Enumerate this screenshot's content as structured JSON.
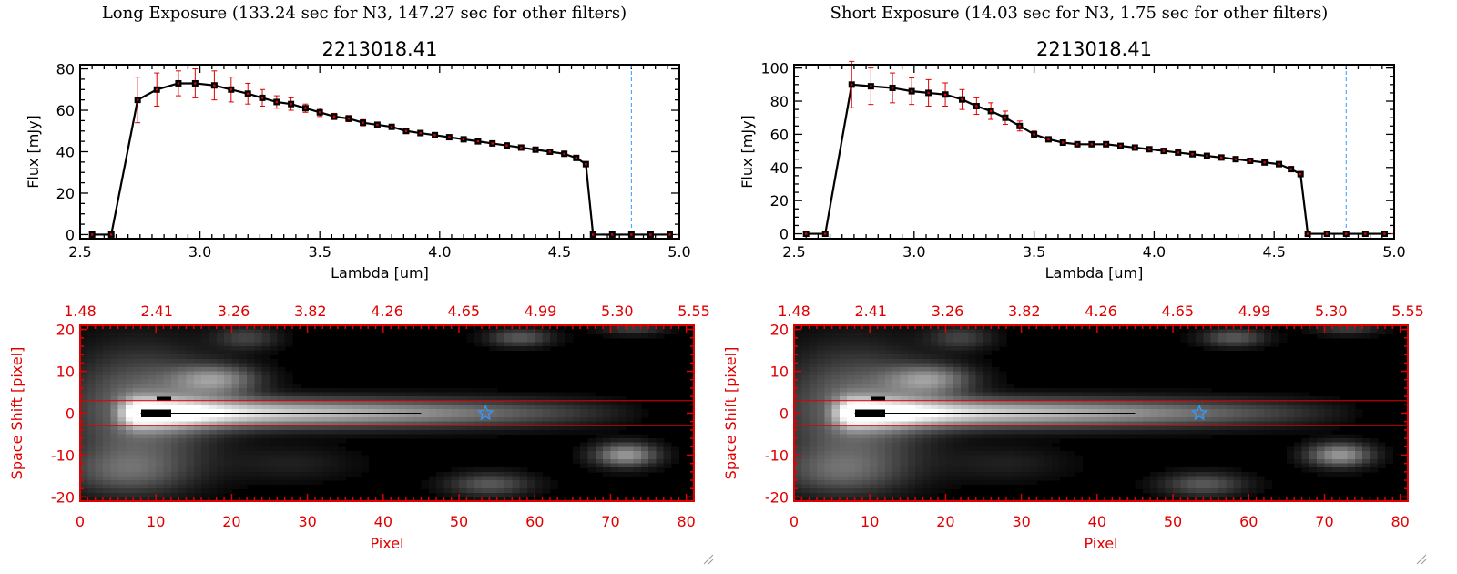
{
  "panels": [
    {
      "title": "Long Exposure (133.24 sec for N3, 147.27 sec for other filters)"
    },
    {
      "title": "Short Exposure (14.03 sec for N3, 1.75 sec for other filters)"
    }
  ],
  "colors": {
    "spectrum": "#000000",
    "errorbar": "#e00000",
    "cutoff_line": "#3399ff",
    "image_axis": "#e00000",
    "aperture": "#e00000",
    "marker": "#3399ff"
  },
  "chart_data": [
    {
      "type": "line",
      "title": "2213018.41",
      "xlabel": "Lambda [um]",
      "ylabel": "Flux [mJy]",
      "xlim": [
        2.5,
        5.0
      ],
      "ylim": [
        -2,
        82
      ],
      "xticks": [
        "2.5",
        "3.0",
        "3.5",
        "4.0",
        "4.5",
        "5.0"
      ],
      "yticks": [
        "0",
        "20",
        "40",
        "60",
        "80"
      ],
      "ytick_values": [
        0,
        20,
        40,
        60,
        80
      ],
      "cutoff_x": 4.8,
      "series": [
        {
          "x": [
            2.55,
            2.63,
            2.74,
            2.82,
            2.91,
            2.98,
            3.06,
            3.13,
            3.2,
            3.26,
            3.32,
            3.38,
            3.44,
            3.5,
            3.56,
            3.62,
            3.68,
            3.74,
            3.8,
            3.86,
            3.92,
            3.98,
            4.04,
            4.1,
            4.16,
            4.22,
            4.28,
            4.34,
            4.4,
            4.46,
            4.52,
            4.57,
            4.61,
            4.64,
            4.72,
            4.8,
            4.88,
            4.96
          ],
          "y": [
            0,
            0,
            65,
            70,
            73,
            73,
            72,
            70,
            68,
            66,
            64,
            63,
            61,
            59,
            57,
            56,
            54,
            53,
            52,
            50,
            49,
            48,
            47,
            46,
            45,
            44,
            43,
            42,
            41,
            40,
            39,
            37,
            34,
            0,
            0,
            0,
            0,
            0
          ],
          "err": [
            0,
            0,
            11,
            8,
            6,
            7,
            7,
            6,
            5,
            4,
            3,
            3,
            2,
            2,
            1.5,
            1.5,
            1.5,
            1,
            1,
            1,
            1,
            1,
            1,
            1,
            1,
            1,
            1,
            1,
            1,
            1,
            1,
            1,
            1,
            0,
            0,
            0,
            0,
            0
          ]
        }
      ]
    },
    {
      "type": "line",
      "title": "2213018.41",
      "xlabel": "Lambda [um]",
      "ylabel": "Flux [mJy]",
      "xlim": [
        2.5,
        5.0
      ],
      "ylim": [
        -3,
        102
      ],
      "xticks": [
        "2.5",
        "3.0",
        "3.5",
        "4.0",
        "4.5",
        "5.0"
      ],
      "yticks": [
        "0",
        "20",
        "40",
        "60",
        "80",
        "100"
      ],
      "ytick_values": [
        0,
        20,
        40,
        60,
        80,
        100
      ],
      "cutoff_x": 4.8,
      "series": [
        {
          "x": [
            2.55,
            2.63,
            2.74,
            2.82,
            2.91,
            2.99,
            3.06,
            3.13,
            3.2,
            3.26,
            3.32,
            3.38,
            3.44,
            3.5,
            3.56,
            3.62,
            3.68,
            3.74,
            3.8,
            3.86,
            3.92,
            3.98,
            4.04,
            4.1,
            4.16,
            4.22,
            4.28,
            4.34,
            4.4,
            4.46,
            4.52,
            4.57,
            4.61,
            4.64,
            4.72,
            4.8,
            4.88,
            4.96
          ],
          "y": [
            0,
            0,
            90,
            89,
            88,
            86,
            85,
            84,
            81,
            77,
            74,
            70,
            65,
            60,
            57,
            55,
            54,
            54,
            54,
            53,
            52,
            51,
            50,
            49,
            48,
            47,
            46,
            45,
            44,
            43,
            42,
            39,
            36,
            0,
            0,
            0,
            0,
            0
          ],
          "err": [
            0,
            0,
            14,
            11,
            9,
            8,
            8,
            7,
            6,
            5,
            5,
            4,
            3,
            2,
            1.5,
            1.5,
            1.5,
            1,
            1,
            1,
            1,
            1,
            1,
            1,
            1,
            1,
            1,
            1,
            1,
            1,
            1,
            1,
            1,
            0,
            0,
            0,
            0,
            0
          ]
        }
      ]
    },
    {
      "type": "heatmap",
      "xlabel": "Pixel",
      "ylabel": "Space Shift [pixel]",
      "xlim": [
        0,
        81
      ],
      "ylim": [
        -21,
        21
      ],
      "xticks": [
        "0",
        "10",
        "20",
        "30",
        "40",
        "50",
        "60",
        "70",
        "80"
      ],
      "xtick_values": [
        0,
        10,
        20,
        30,
        40,
        50,
        60,
        70,
        80
      ],
      "yticks": [
        "-20",
        "-10",
        "0",
        "10",
        "20"
      ],
      "ytick_values": [
        -20,
        -10,
        0,
        10,
        20
      ],
      "top_axis_labels": [
        "1.48",
        "2.41",
        "3.26",
        "3.82",
        "4.26",
        "4.65",
        "4.99",
        "5.30",
        "5.55"
      ],
      "aperture": [
        -3,
        3
      ],
      "star_x": 53.5,
      "blobs": [
        {
          "x": 8,
          "y": 1,
          "sx": 7,
          "sy": 10,
          "amp": 0.45
        },
        {
          "x": 18,
          "y": 8,
          "sx": 4,
          "sy": 2.5,
          "amp": 0.5
        },
        {
          "x": 22,
          "y": 18,
          "sx": 3,
          "sy": 2,
          "amp": 0.25
        },
        {
          "x": 58,
          "y": 18,
          "sx": 3,
          "sy": 1.5,
          "amp": 0.35
        },
        {
          "x": 73,
          "y": 20,
          "sx": 3,
          "sy": 1,
          "amp": 0.25
        },
        {
          "x": 54,
          "y": -17,
          "sx": 4,
          "sy": 2,
          "amp": 0.35
        },
        {
          "x": 72,
          "y": -10,
          "sx": 3,
          "sy": 2,
          "amp": 0.6
        },
        {
          "x": 6,
          "y": -14,
          "sx": 6,
          "sy": 4,
          "amp": 0.3
        },
        {
          "x": 28,
          "y": -12,
          "sx": 6,
          "sy": 3,
          "amp": 0.12
        }
      ],
      "trace": {
        "start": 8,
        "end": 76,
        "peak": 0.92,
        "width": 2.4
      },
      "dark_patches": [
        {
          "x": [
            8,
            12
          ],
          "y": [
            -1,
            1
          ]
        },
        {
          "x": [
            10,
            12
          ],
          "y": [
            3,
            4
          ]
        }
      ]
    },
    {
      "type": "heatmap",
      "xlabel": "Pixel",
      "ylabel": "Space Shift [pixel]",
      "xlim": [
        0,
        81
      ],
      "ylim": [
        -21,
        21
      ],
      "xticks": [
        "0",
        "10",
        "20",
        "30",
        "40",
        "50",
        "60",
        "70",
        "80"
      ],
      "xtick_values": [
        0,
        10,
        20,
        30,
        40,
        50,
        60,
        70,
        80
      ],
      "yticks": [
        "-20",
        "-10",
        "0",
        "10",
        "20"
      ],
      "ytick_values": [
        -20,
        -10,
        0,
        10,
        20
      ],
      "top_axis_labels": [
        "1.48",
        "2.41",
        "3.26",
        "3.82",
        "4.26",
        "4.65",
        "4.99",
        "5.30",
        "5.55"
      ],
      "aperture": [
        -3,
        3
      ],
      "star_x": 53.5,
      "blobs": [
        {
          "x": 8,
          "y": 1,
          "sx": 7,
          "sy": 10,
          "amp": 0.45
        },
        {
          "x": 18,
          "y": 8,
          "sx": 4,
          "sy": 2.5,
          "amp": 0.5
        },
        {
          "x": 22,
          "y": 18,
          "sx": 3,
          "sy": 2,
          "amp": 0.25
        },
        {
          "x": 58,
          "y": 18,
          "sx": 3,
          "sy": 1.5,
          "amp": 0.35
        },
        {
          "x": 73,
          "y": 20,
          "sx": 3,
          "sy": 1,
          "amp": 0.25
        },
        {
          "x": 54,
          "y": -17,
          "sx": 4,
          "sy": 2,
          "amp": 0.35
        },
        {
          "x": 72,
          "y": -10,
          "sx": 3,
          "sy": 2,
          "amp": 0.6
        },
        {
          "x": 6,
          "y": -14,
          "sx": 6,
          "sy": 4,
          "amp": 0.3
        },
        {
          "x": 28,
          "y": -12,
          "sx": 6,
          "sy": 3,
          "amp": 0.12
        }
      ],
      "trace": {
        "start": 8,
        "end": 76,
        "peak": 0.92,
        "width": 2.4
      },
      "dark_patches": [
        {
          "x": [
            8,
            12
          ],
          "y": [
            -1,
            1
          ]
        },
        {
          "x": [
            10,
            12
          ],
          "y": [
            3,
            4
          ]
        }
      ]
    }
  ]
}
